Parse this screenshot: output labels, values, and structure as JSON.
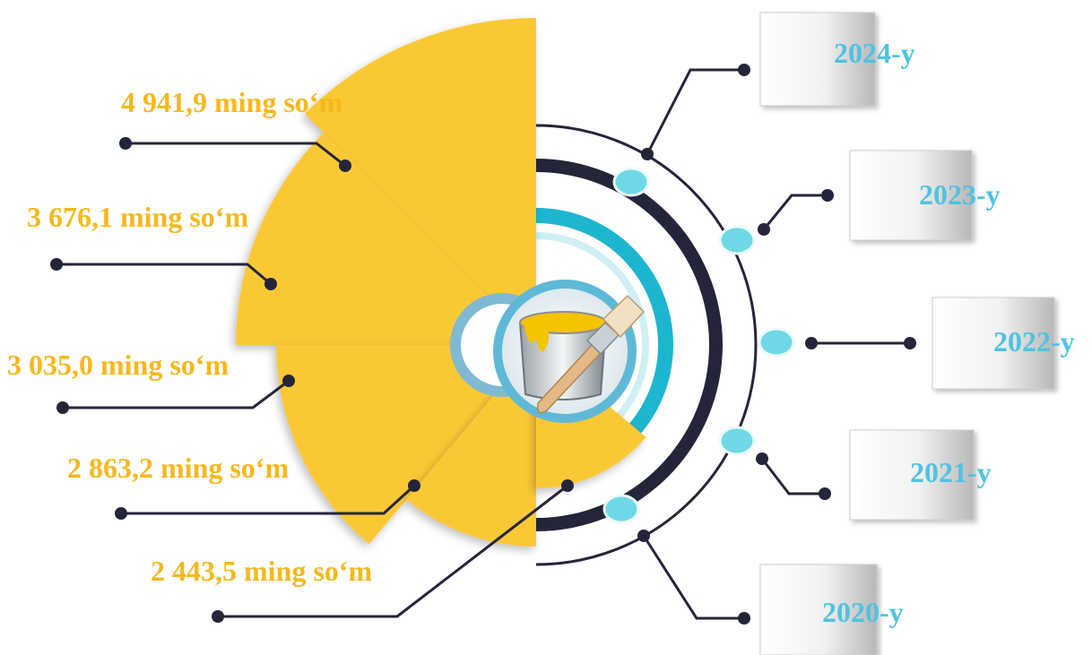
{
  "chart_data": {
    "type": "pie",
    "categories": [
      "2020-y",
      "2021-y",
      "2022-y",
      "2023-y",
      "2024-y"
    ],
    "values": [
      2443.5,
      2863.2,
      3035.0,
      3676.1,
      4941.9
    ],
    "value_labels": [
      "2 443,5 ming so‘m",
      "2 863,2 ming so‘m",
      "3 035,0 ming so‘m",
      "3 676,1 ming so‘m",
      "4 941,9 ming so‘m"
    ],
    "title": "",
    "legend": "right",
    "colors": {
      "slice": "#FBC834",
      "value_text": "#F6B81D",
      "year_text": "#4FC3E0",
      "ring_dark": "#25253A",
      "ring_cyan": "#1EB5D0",
      "dot_fill": "#6FD8E6",
      "connector": "#25253A"
    }
  },
  "icons": {
    "center": "paint-bucket-brush-icon"
  }
}
